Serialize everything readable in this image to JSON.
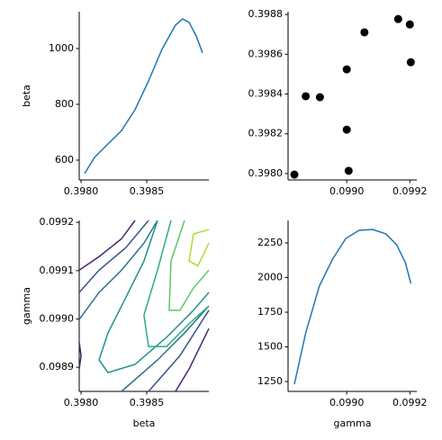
{
  "chart_data": [
    {
      "type": "line",
      "ylabel": "beta",
      "color": "#1f77b4",
      "x": [
        0.398027,
        0.398103,
        0.398205,
        0.398308,
        0.398411,
        0.398514,
        0.398616,
        0.398719,
        0.398774,
        0.398822,
        0.398877,
        0.398925
      ],
      "values": [
        552,
        610,
        658,
        706,
        781,
        884,
        997,
        1084,
        1106,
        1094,
        1045,
        984
      ],
      "xlim": [
        0.397986,
        0.398973
      ],
      "ylim": [
        529,
        1132
      ],
      "xticks": [
        {
          "value": 0.398,
          "label": "0.3980"
        },
        0.3985
      ],
      "yticks": [
        600,
        800,
        1000
      ]
    },
    {
      "type": "scatter",
      "color": "#000000",
      "x": [
        0.098834,
        0.09887,
        0.098915,
        0.099,
        0.099,
        0.099006,
        0.099056,
        0.099163,
        0.0992,
        0.099203
      ],
      "values": [
        0.397995,
        0.398389,
        0.398384,
        0.398524,
        0.398221,
        0.398014,
        0.39871,
        0.398777,
        0.39875,
        0.39856
      ],
      "xlim": [
        0.098814,
        0.099222
      ],
      "ylim": [
        0.397968,
        0.398814
      ],
      "xticks": [
        {
          "value": 0.099,
          "label": "0.0990"
        },
        0.0992
      ],
      "yticks": [
        {
          "value": 0.398,
          "label": "0.3980"
        },
        0.3982,
        0.3984,
        0.3986,
        0.3988
      ]
    },
    {
      "type": "contour",
      "xlabel": "beta",
      "ylabel": "gamma",
      "series": [
        {
          "color": "#482475",
          "x": [
            0.397986,
            0.398137,
            0.398308,
            0.398411
          ],
          "values": [
            0.099101,
            0.099129,
            0.099166,
            0.099204
          ]
        },
        {
          "color": "#482475",
          "x": [
            0.398719,
            0.398822,
            0.398973
          ],
          "values": [
            0.09885,
            0.098896,
            0.09898
          ]
        },
        {
          "color": "#482475",
          "x": [
            0.397986,
            0.398,
            0.397986
          ],
          "values": [
            0.098952,
            0.098924,
            0.098896
          ]
        },
        {
          "color": "#3b528b",
          "x": [
            0.397986,
            0.398137,
            0.398342,
            0.398514
          ],
          "values": [
            0.099055,
            0.099101,
            0.099148,
            0.099204
          ]
        },
        {
          "color": "#3b528b",
          "x": [
            0.398514,
            0.398753,
            0.398973
          ],
          "values": [
            0.09885,
            0.098924,
            0.099018
          ]
        },
        {
          "color": "#2c728e",
          "x": [
            0.397986,
            0.398137,
            0.398308,
            0.398479,
            0.398582
          ],
          "values": [
            0.098999,
            0.099055,
            0.099101,
            0.099157,
            0.099204
          ]
        },
        {
          "color": "#2c728e",
          "x": [
            0.398308,
            0.398582,
            0.398788,
            0.398973
          ],
          "values": [
            0.09885,
            0.098915,
            0.098971,
            0.099027
          ]
        },
        {
          "color": "#21918c",
          "x": [
            0.398582,
            0.398479,
            0.398342,
            0.398205,
            0.398137,
            0.398205,
            0.398411,
            0.398651,
            0.398856,
            0.398973
          ],
          "values": [
            0.099204,
            0.09912,
            0.099045,
            0.098971,
            0.098915,
            0.098889,
            0.098906,
            0.098962,
            0.099018,
            0.099055
          ]
        },
        {
          "color": "#28ae80",
          "x": [
            0.398685,
            0.398582,
            0.398479,
            0.398514,
            0.398651,
            0.398822,
            0.398973
          ],
          "values": [
            0.099204,
            0.099101,
            0.099008,
            0.098943,
            0.098943,
            0.09899,
            0.099027
          ]
        },
        {
          "color": "#5ec962",
          "x": [
            0.398788,
            0.398685,
            0.398671,
            0.398753,
            0.398856,
            0.398973
          ],
          "values": [
            0.099204,
            0.09912,
            0.099018,
            0.099018,
            0.099064,
            0.099101
          ]
        },
        {
          "color": "#addc30",
          "x": [
            0.398973,
            0.398856,
            0.398822,
            0.39889,
            0.398973
          ],
          "values": [
            0.099185,
            0.099176,
            0.09912,
            0.09911,
            0.099157
          ]
        }
      ],
      "xlim": [
        0.397986,
        0.398973
      ],
      "ylim": [
        0.09885,
        0.099204
      ],
      "xticks": [
        {
          "value": 0.398,
          "label": "0.3980"
        },
        0.3985
      ],
      "yticks": [
        0.0989,
        {
          "value": 0.099,
          "label": "0.0990"
        },
        0.0991,
        0.0992
      ]
    },
    {
      "type": "line",
      "xlabel": "gamma",
      "color": "#1f77b4",
      "x": [
        0.098834,
        0.09887,
        0.098913,
        0.098955,
        0.098997,
        0.099039,
        0.099082,
        0.099124,
        0.099158,
        0.099186,
        0.099203
      ],
      "values": [
        1231,
        1601,
        1938,
        2133,
        2282,
        2341,
        2347,
        2315,
        2237,
        2107,
        1958
      ],
      "xlim": [
        0.098814,
        0.099222
      ],
      "ylim": [
        1179,
        2412
      ],
      "xticks": [
        {
          "value": 0.099,
          "label": "0.0990"
        },
        0.0992
      ],
      "yticks": [
        1250,
        1500,
        1750,
        2000,
        2250
      ]
    }
  ]
}
